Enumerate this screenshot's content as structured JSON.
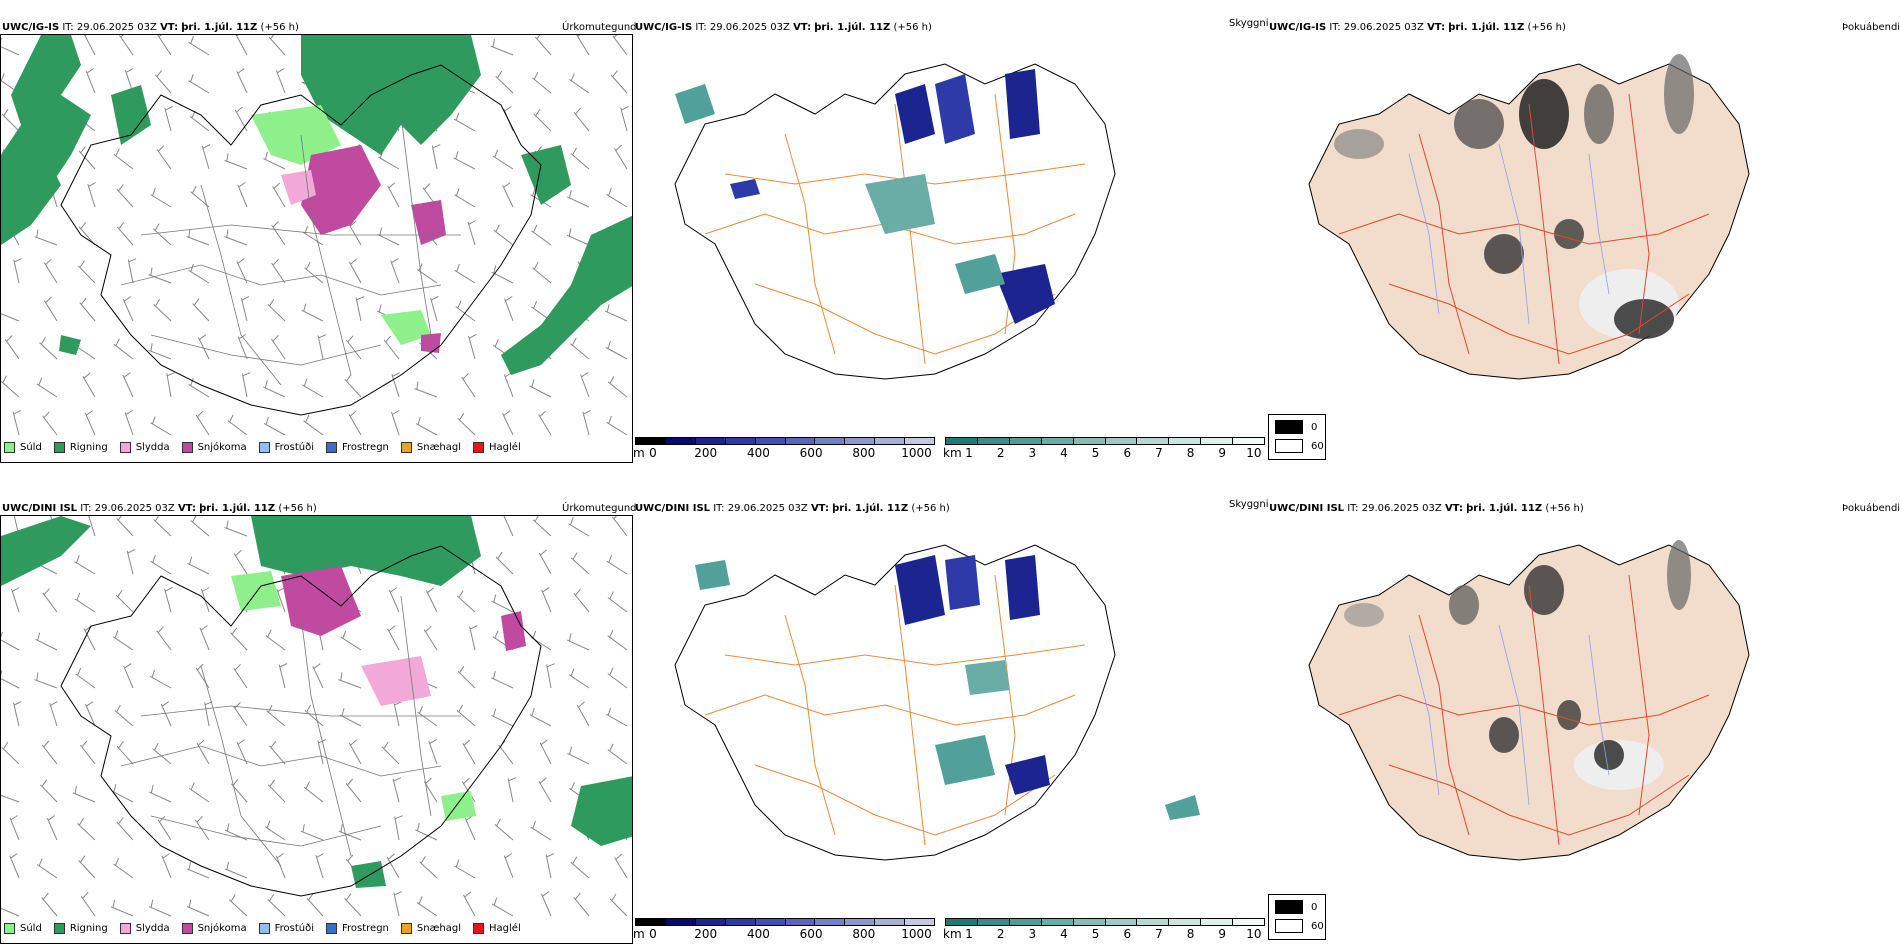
{
  "rows": [
    {
      "model": "UWC/IG-IS",
      "it_label": "IT:",
      "it_value": "29.06.2025 03Z",
      "vt_label": "VT:",
      "vt_value": "þri. 1.júl. 11Z",
      "lead": "(+56 h)"
    },
    {
      "model": "UWC/DINI ISL",
      "it_label": "IT:",
      "it_value": "29.06.2025 03Z",
      "vt_label": "VT:",
      "vt_value": "þri. 1.júl. 11Z",
      "lead": "(+56 h)"
    }
  ],
  "products": {
    "precip_type": "Úrkomutegund",
    "cloud_ceiling": "Skyggni",
    "fog": "Þokuábendi"
  },
  "precip_legend": [
    {
      "label": "Súld",
      "color": "#8ef08a"
    },
    {
      "label": "Rigning",
      "color": "#2e9a5e"
    },
    {
      "label": "Slydda",
      "color": "#f2a8d8"
    },
    {
      "label": "Snjókoma",
      "color": "#c04aa0"
    },
    {
      "label": "Frostúði",
      "color": "#90c0f0"
    },
    {
      "label": "Frostregn",
      "color": "#3a6ec8"
    },
    {
      "label": "Snæhagl",
      "color": "#f0a020"
    },
    {
      "label": "Haglél",
      "color": "#e01818"
    }
  ],
  "height_bar": {
    "unit": "m",
    "ticks": [
      "0",
      "200",
      "400",
      "600",
      "800",
      "1000"
    ],
    "colors": [
      "#000000",
      "#0a0a6e",
      "#1c2490",
      "#2d3aa8",
      "#4050b4",
      "#5a66bc",
      "#7480c4",
      "#8e98cc",
      "#a8b0d6",
      "#c4c8e2"
    ]
  },
  "visibility_bar": {
    "unit": "km",
    "ticks": [
      "1",
      "2",
      "3",
      "4",
      "5",
      "6",
      "7",
      "8",
      "9",
      "10"
    ],
    "colors": [
      "#1e7a74",
      "#3a8c86",
      "#529c96",
      "#6aaca6",
      "#84bcb6",
      "#9ccac4",
      "#b4d8d2",
      "#cae4e0",
      "#dff0ec",
      "#f2faf8"
    ]
  },
  "fog_scale": {
    "high": "0",
    "low": "60"
  },
  "wind_barbs_caption": "",
  "map_colors": {
    "coast": "#000000",
    "roads_gray": "#777777",
    "roads_orange": "#ee8a3a",
    "roads_red": "#e04a30",
    "land_fog": "#f2dccc",
    "rivers": "#8aa0f0"
  }
}
